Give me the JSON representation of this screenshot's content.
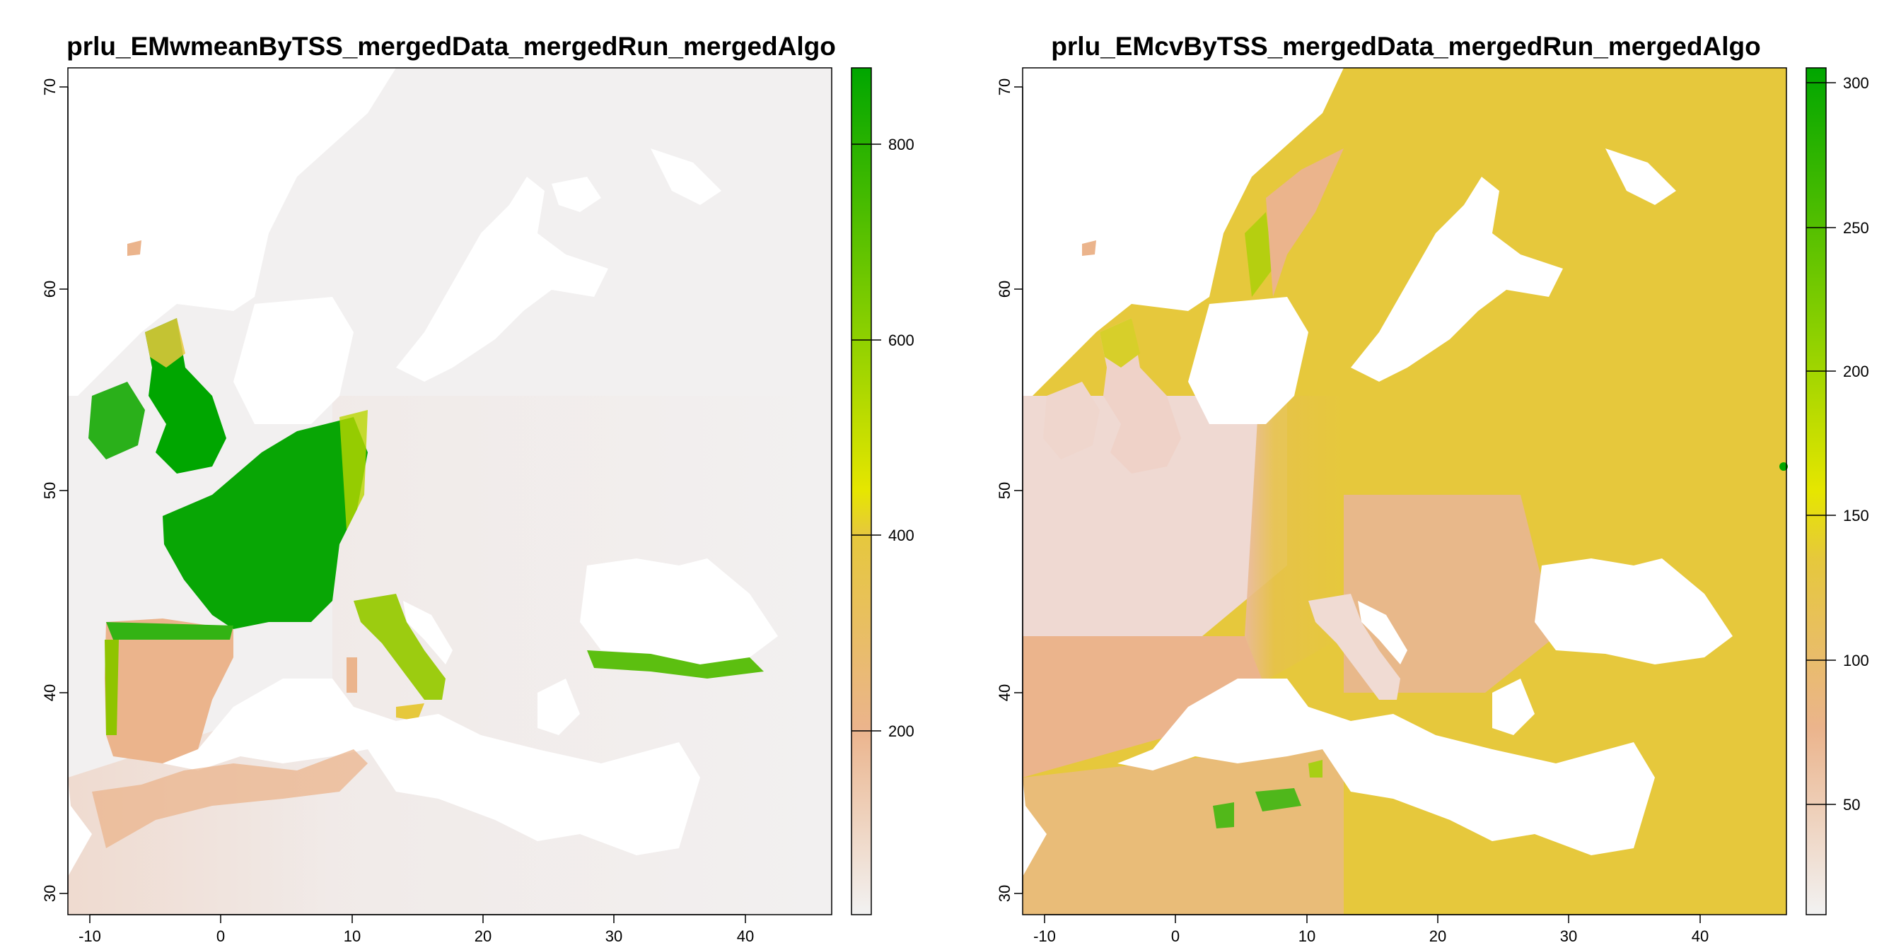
{
  "panels": [
    {
      "title": "prlu_EMwmeanByTSS_mergedData_mergedRun_mergedAlgo",
      "x_ticks": [
        "-10",
        "0",
        "10",
        "20",
        "30",
        "40"
      ],
      "y_ticks": [
        "30",
        "40",
        "50",
        "60",
        "70"
      ],
      "legend_ticks": [
        "200",
        "400",
        "600",
        "800"
      ],
      "legend_range": [
        0,
        880
      ],
      "colors": {
        "low": "#f2f2f2",
        "mid_low": "#ebb48c",
        "mid": "#e6c83c",
        "yellow": "#e6e600",
        "high": "#00a600"
      }
    },
    {
      "title": "prlu_EMcvByTSS_mergedData_mergedRun_mergedAlgo",
      "x_ticks": [
        "-10",
        "0",
        "10",
        "20",
        "30",
        "40"
      ],
      "y_ticks": [
        "30",
        "40",
        "50",
        "60",
        "70"
      ],
      "legend_ticks": [
        "50",
        "100",
        "150",
        "200",
        "250",
        "300"
      ],
      "legend_range": [
        10,
        310
      ],
      "colors": {
        "low": "#f2f2f2",
        "mid_low": "#ebb48c",
        "mid": "#e6c83c",
        "yellow": "#e6e600",
        "high": "#00a600"
      }
    }
  ]
}
